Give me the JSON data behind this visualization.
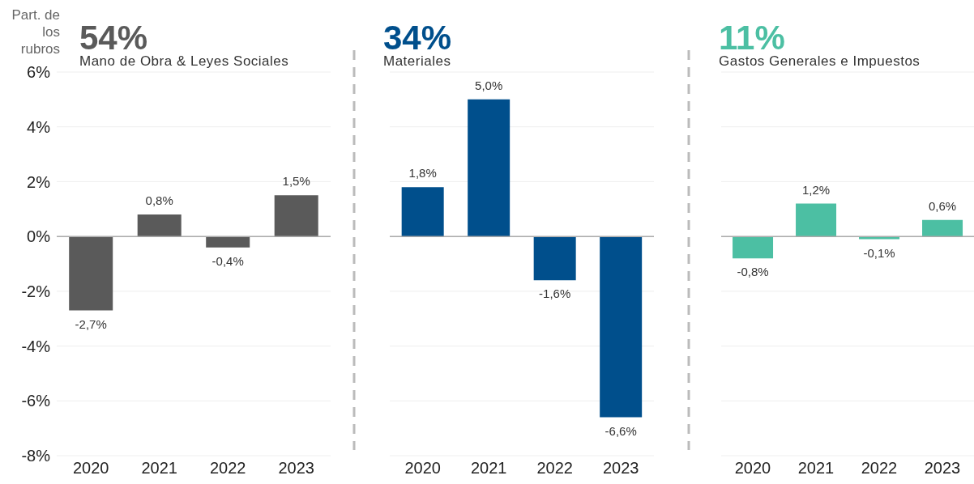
{
  "chart_data": [
    {
      "type": "bar",
      "title": "54%",
      "subtitle": "Mano de Obra & Leyes Sociales",
      "ylabel": "Part. de los rubros",
      "categories": [
        "2020",
        "2021",
        "2022",
        "2023"
      ],
      "values": [
        -2.7,
        0.8,
        -0.4,
        1.5
      ],
      "value_labels": [
        "-2,7%",
        "0,8%",
        "-0,4%",
        "1,5%"
      ],
      "color": "#5a5a5a",
      "ylim": [
        -8,
        6
      ],
      "yticks": [
        {
          "value": -8,
          "label": "-8%"
        },
        {
          "value": -6,
          "label": "-6%"
        },
        {
          "value": -4,
          "label": "-4%"
        },
        {
          "value": -2,
          "label": "-2%"
        },
        {
          "value": 0,
          "label": "0%"
        },
        {
          "value": 2,
          "label": "2%"
        },
        {
          "value": 4,
          "label": "4%"
        },
        {
          "value": 6,
          "label": "6%"
        }
      ],
      "grid": "y",
      "ref_lines": [
        {
          "axis": "y",
          "value": 0,
          "color": "#aaaaaa"
        }
      ]
    },
    {
      "type": "bar",
      "title": "34%",
      "subtitle": "Materiales",
      "categories": [
        "2020",
        "2021",
        "2022",
        "2023"
      ],
      "values": [
        1.8,
        5.0,
        -1.6,
        -6.6
      ],
      "value_labels": [
        "1,8%",
        "5,0%",
        "-1,6%",
        "-6,6%"
      ],
      "color": "#004f8c",
      "ylim": [
        -8,
        6
      ],
      "yticks": [
        -8,
        -6,
        -4,
        -2,
        0,
        2,
        4,
        6
      ],
      "grid": "y",
      "tick_labels": "x",
      "ref_lines": [
        {
          "axis": "y",
          "value": 0,
          "color": "#aaaaaa"
        }
      ]
    },
    {
      "type": "bar",
      "title": "11%",
      "subtitle": "Gastos Generales e Impuestos",
      "categories": [
        "2020",
        "2021",
        "2022",
        "2023"
      ],
      "values": [
        -0.8,
        1.2,
        -0.1,
        0.6
      ],
      "value_labels": [
        "-0,8%",
        "1,2%",
        "-0,1%",
        "0,6%"
      ],
      "color": "#4cbfa3",
      "ylim": [
        -8,
        6
      ],
      "yticks": [
        -8,
        -6,
        -4,
        -2,
        0,
        2,
        4,
        6
      ],
      "grid": "y",
      "tick_labels": "x",
      "ref_lines": [
        {
          "axis": "y",
          "value": 0,
          "color": "#aaaaaa"
        }
      ]
    }
  ]
}
